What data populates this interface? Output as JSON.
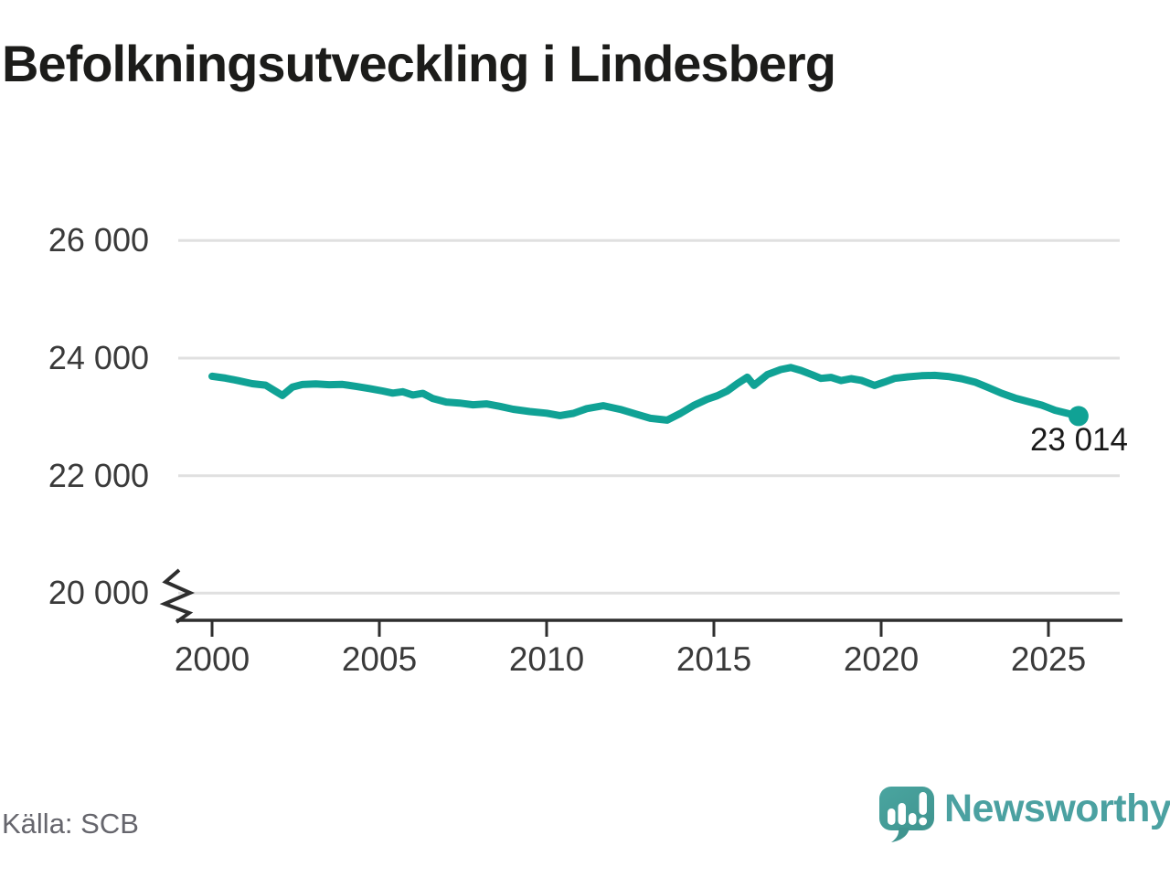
{
  "title": "Befolkningsutveckling i Lindesberg",
  "source": "Källa: SCB",
  "logo": {
    "text": "Newsworthy",
    "icon": "newsworthy-speech-bubble-chart-icon"
  },
  "colors": {
    "series_teal": "#10a295",
    "grid": "#e0e0e0",
    "axis": "#2e2e2e",
    "text_dark": "#1c1c1a",
    "text_axis": "#3a3a3a",
    "text_source": "#66666d",
    "logo_teal": "#47a09c",
    "logo_word_teal": "#4ba1a1"
  },
  "chart_data": {
    "type": "line",
    "title": "Befolkningsutveckling i Lindesberg",
    "xlabel": "",
    "ylabel": "",
    "grid": "horizontal",
    "axis_break_at_bottom": true,
    "ylim": [
      20000,
      26000
    ],
    "xlim": [
      2000,
      2026.2
    ],
    "y_ticks": [
      {
        "value": 26000,
        "label": "26 000"
      },
      {
        "value": 24000,
        "label": "24 000"
      },
      {
        "value": 22000,
        "label": "22 000"
      },
      {
        "value": 20000,
        "label": "20 000"
      }
    ],
    "x_ticks": [
      {
        "value": 2000,
        "label": "2000"
      },
      {
        "value": 2005,
        "label": "2005"
      },
      {
        "value": 2010,
        "label": "2010"
      },
      {
        "value": 2015,
        "label": "2015"
      },
      {
        "value": 2020,
        "label": "2020"
      },
      {
        "value": 2025,
        "label": "2025"
      }
    ],
    "last_point_label": "23 014",
    "last_point": {
      "x": 2025.9,
      "y": 23014
    },
    "series": [
      {
        "points": [
          [
            2000.0,
            23690
          ],
          [
            2000.4,
            23660
          ],
          [
            2000.8,
            23615
          ],
          [
            2001.2,
            23565
          ],
          [
            2001.6,
            23540
          ],
          [
            2001.9,
            23435
          ],
          [
            2002.1,
            23365
          ],
          [
            2002.4,
            23505
          ],
          [
            2002.7,
            23550
          ],
          [
            2003.1,
            23560
          ],
          [
            2003.5,
            23548
          ],
          [
            2003.9,
            23552
          ],
          [
            2004.3,
            23520
          ],
          [
            2004.7,
            23482
          ],
          [
            2005.1,
            23440
          ],
          [
            2005.4,
            23405
          ],
          [
            2005.7,
            23428
          ],
          [
            2006.0,
            23372
          ],
          [
            2006.3,
            23400
          ],
          [
            2006.6,
            23312
          ],
          [
            2007.0,
            23252
          ],
          [
            2007.4,
            23235
          ],
          [
            2007.8,
            23205
          ],
          [
            2008.2,
            23222
          ],
          [
            2008.6,
            23180
          ],
          [
            2009.0,
            23130
          ],
          [
            2009.5,
            23090
          ],
          [
            2010.0,
            23062
          ],
          [
            2010.4,
            23022
          ],
          [
            2010.8,
            23060
          ],
          [
            2011.2,
            23140
          ],
          [
            2011.7,
            23190
          ],
          [
            2012.2,
            23128
          ],
          [
            2012.7,
            23042
          ],
          [
            2013.1,
            22975
          ],
          [
            2013.6,
            22945
          ],
          [
            2014.0,
            23060
          ],
          [
            2014.4,
            23195
          ],
          [
            2014.8,
            23300
          ],
          [
            2015.1,
            23360
          ],
          [
            2015.4,
            23440
          ],
          [
            2015.7,
            23565
          ],
          [
            2016.0,
            23675
          ],
          [
            2016.2,
            23535
          ],
          [
            2016.6,
            23720
          ],
          [
            2017.0,
            23805
          ],
          [
            2017.3,
            23840
          ],
          [
            2017.6,
            23790
          ],
          [
            2017.9,
            23725
          ],
          [
            2018.2,
            23655
          ],
          [
            2018.5,
            23672
          ],
          [
            2018.8,
            23618
          ],
          [
            2019.1,
            23650
          ],
          [
            2019.4,
            23622
          ],
          [
            2019.8,
            23535
          ],
          [
            2020.1,
            23592
          ],
          [
            2020.4,
            23655
          ],
          [
            2020.8,
            23682
          ],
          [
            2021.2,
            23700
          ],
          [
            2021.6,
            23706
          ],
          [
            2022.0,
            23688
          ],
          [
            2022.4,
            23650
          ],
          [
            2022.8,
            23592
          ],
          [
            2023.2,
            23500
          ],
          [
            2023.6,
            23402
          ],
          [
            2024.0,
            23320
          ],
          [
            2024.4,
            23260
          ],
          [
            2024.8,
            23200
          ],
          [
            2025.2,
            23112
          ],
          [
            2025.6,
            23055
          ],
          [
            2025.9,
            23014
          ]
        ]
      }
    ]
  }
}
